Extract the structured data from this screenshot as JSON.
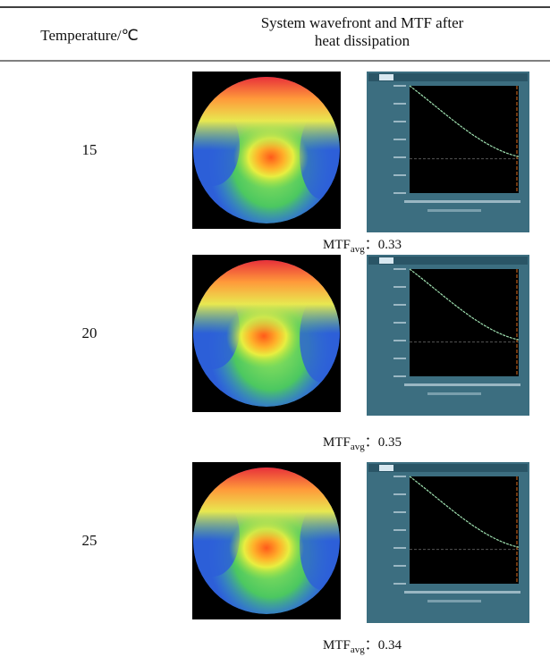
{
  "header": {
    "col1": "Temperature/℃",
    "col2_lines": [
      "System wavefront and MTF after",
      "heat dissipation"
    ]
  },
  "rows": [
    {
      "temperature": 15,
      "mtf_label": "MTF",
      "mtf_subscript": "avg",
      "separator": "：",
      "mtf_value": 0.33
    },
    {
      "temperature": 20,
      "mtf_label": "MTF",
      "mtf_subscript": "avg",
      "separator": "：",
      "mtf_value": 0.35
    },
    {
      "temperature": 25,
      "mtf_label": "MTF",
      "mtf_subscript": "avg",
      "separator": "：",
      "mtf_value": 0.34
    }
  ]
}
